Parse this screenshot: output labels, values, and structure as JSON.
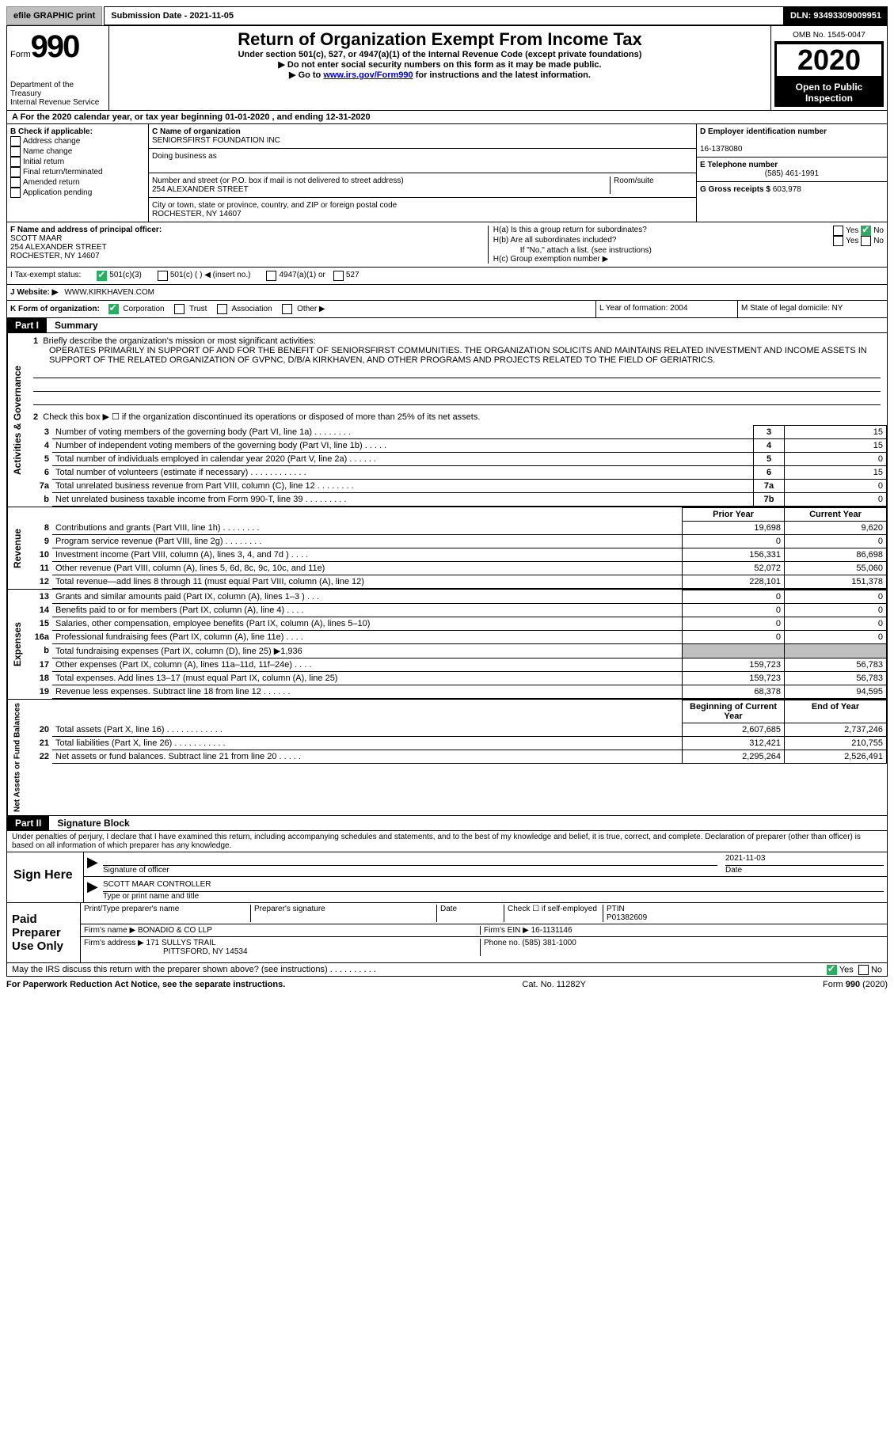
{
  "topbar": {
    "efile": "efile GRAPHIC print",
    "submission": "Submission Date - 2021-11-05",
    "dln": "DLN: 93493309009951"
  },
  "header": {
    "form_word": "Form",
    "form_num": "990",
    "dept": "Department of the Treasury\nInternal Revenue Service",
    "title": "Return of Organization Exempt From Income Tax",
    "subtitle": "Under section 501(c), 527, or 4947(a)(1) of the Internal Revenue Code (except private foundations)",
    "warn1": "▶ Do not enter social security numbers on this form as it may be made public.",
    "warn2_prefix": "▶ Go to ",
    "warn2_link": "www.irs.gov/Form990",
    "warn2_suffix": " for instructions and the latest information.",
    "omb": "OMB No. 1545-0047",
    "year": "2020",
    "open": "Open to Public Inspection"
  },
  "a_line": "A For the 2020 calendar year, or tax year beginning 01-01-2020   , and ending 12-31-2020",
  "b": {
    "label": "B Check if applicable:",
    "items": [
      "Address change",
      "Name change",
      "Initial return",
      "Final return/terminated",
      "Amended return",
      "Application pending"
    ]
  },
  "c": {
    "name_label": "C Name of organization",
    "name": "SENIORSFIRST FOUNDATION INC",
    "dba_label": "Doing business as",
    "addr_label": "Number and street (or P.O. box if mail is not delivered to street address)",
    "addr": "254 ALEXANDER STREET",
    "room_label": "Room/suite",
    "city_label": "City or town, state or province, country, and ZIP or foreign postal code",
    "city": "ROCHESTER, NY  14607"
  },
  "d": {
    "label": "D Employer identification number",
    "val": "16-1378080"
  },
  "e": {
    "label": "E Telephone number",
    "val": "(585) 461-1991"
  },
  "g": {
    "label": "G Gross receipts $",
    "val": "603,978"
  },
  "f": {
    "label": "F  Name and address of principal officer:",
    "name": "SCOTT MAAR",
    "addr1": "254 ALEXANDER STREET",
    "addr2": "ROCHESTER, NY  14607"
  },
  "h": {
    "ha": "H(a)  Is this a group return for subordinates?",
    "hb": "H(b)  Are all subordinates included?",
    "hb_note": "If \"No,\" attach a list. (see instructions)",
    "hc": "H(c)  Group exemption number ▶"
  },
  "i": {
    "label": "I   Tax-exempt status:",
    "o1": "501(c)(3)",
    "o2": "501(c) (  ) ◀ (insert no.)",
    "o3": "4947(a)(1) or",
    "o4": "527"
  },
  "j": {
    "label": "J   Website: ▶",
    "val": "WWW.KIRKHAVEN.COM"
  },
  "k": {
    "label": "K Form of organization:",
    "o1": "Corporation",
    "o2": "Trust",
    "o3": "Association",
    "o4": "Other ▶"
  },
  "l": {
    "label": "L Year of formation: 2004"
  },
  "m": {
    "label": "M State of legal domicile: NY"
  },
  "part1": {
    "label": "Part I",
    "title": "Summary"
  },
  "summary": {
    "line1_label": "Briefly describe the organization's mission or most significant activities:",
    "line1_text": "OPERATES PRIMARILY IN SUPPORT OF AND FOR THE BENEFIT OF SENIORSFIRST COMMUNITIES. THE ORGANIZATION SOLICITS AND MAINTAINS RELATED INVESTMENT AND INCOME ASSETS IN SUPPORT OF THE RELATED ORGANIZATION OF GVPNC, D/B/A KIRKHAVEN, AND OTHER PROGRAMS AND PROJECTS RELATED TO THE FIELD OF GERIATRICS.",
    "line2": "Check this box ▶ ☐  if the organization discontinued its operations or disposed of more than 25% of its net assets.",
    "rows_ag": [
      {
        "n": "3",
        "t": "Number of voting members of the governing body (Part VI, line 1a)   .     .     .     .     .     .     .     .",
        "b": "3",
        "v": "15"
      },
      {
        "n": "4",
        "t": "Number of independent voting members of the governing body (Part VI, line 1b)   .     .     .     .     .",
        "b": "4",
        "v": "15"
      },
      {
        "n": "5",
        "t": "Total number of individuals employed in calendar year 2020 (Part V, line 2a)   .     .     .     .     .     .",
        "b": "5",
        "v": "0"
      },
      {
        "n": "6",
        "t": "Total number of volunteers (estimate if necessary)   .     .     .     .     .     .     .     .     .     .     .     .",
        "b": "6",
        "v": "15"
      },
      {
        "n": "7a",
        "t": "Total unrelated business revenue from Part VIII, column (C), line 12   .     .     .     .     .     .     .     .",
        "b": "7a",
        "v": "0"
      },
      {
        "n": "b",
        "t": "Net unrelated business taxable income from Form 990-T, line 39   .     .     .     .     .     .     .     .     .",
        "b": "7b",
        "v": "0"
      }
    ],
    "revenue_header": {
      "prior": "Prior Year",
      "current": "Current Year"
    },
    "revenue": [
      {
        "n": "8",
        "t": "Contributions and grants (Part VIII, line 1h)   .     .     .     .     .     .     .     .",
        "p": "19,698",
        "c": "9,620"
      },
      {
        "n": "9",
        "t": "Program service revenue (Part VIII, line 2g)   .     .     .     .     .     .     .     .",
        "p": "0",
        "c": "0"
      },
      {
        "n": "10",
        "t": "Investment income (Part VIII, column (A), lines 3, 4, and 7d )   .     .     .     .",
        "p": "156,331",
        "c": "86,698"
      },
      {
        "n": "11",
        "t": "Other revenue (Part VIII, column (A), lines 5, 6d, 8c, 9c, 10c, and 11e)",
        "p": "52,072",
        "c": "55,060"
      },
      {
        "n": "12",
        "t": "Total revenue—add lines 8 through 11 (must equal Part VIII, column (A), line 12)",
        "p": "228,101",
        "c": "151,378"
      }
    ],
    "expenses": [
      {
        "n": "13",
        "t": "Grants and similar amounts paid (Part IX, column (A), lines 1–3 )   .     .     .",
        "p": "0",
        "c": "0"
      },
      {
        "n": "14",
        "t": "Benefits paid to or for members (Part IX, column (A), line 4)   .     .     .     .",
        "p": "0",
        "c": "0"
      },
      {
        "n": "15",
        "t": "Salaries, other compensation, employee benefits (Part IX, column (A), lines 5–10)",
        "p": "0",
        "c": "0"
      },
      {
        "n": "16a",
        "t": "Professional fundraising fees (Part IX, column (A), line 11e)   .     .     .     .",
        "p": "0",
        "c": "0"
      },
      {
        "n": "b",
        "t": "Total fundraising expenses (Part IX, column (D), line 25) ▶1,936",
        "p": "",
        "c": "",
        "shade": true
      },
      {
        "n": "17",
        "t": "Other expenses (Part IX, column (A), lines 11a–11d, 11f–24e)   .     .     .     .",
        "p": "159,723",
        "c": "56,783"
      },
      {
        "n": "18",
        "t": "Total expenses. Add lines 13–17 (must equal Part IX, column (A), line 25)",
        "p": "159,723",
        "c": "56,783"
      },
      {
        "n": "19",
        "t": "Revenue less expenses. Subtract line 18 from line 12   .     .     .     .     .     .",
        "p": "68,378",
        "c": "94,595"
      }
    ],
    "netassets_header": {
      "beg": "Beginning of Current Year",
      "end": "End of Year"
    },
    "netassets": [
      {
        "n": "20",
        "t": "Total assets (Part X, line 16)   .     .     .     .     .     .     .     .     .     .     .     .",
        "p": "2,607,685",
        "c": "2,737,246"
      },
      {
        "n": "21",
        "t": "Total liabilities (Part X, line 26)   .     .     .     .     .     .     .     .     .     .     .",
        "p": "312,421",
        "c": "210,755"
      },
      {
        "n": "22",
        "t": "Net assets or fund balances. Subtract line 21 from line 20   .     .     .     .     .",
        "p": "2,295,264",
        "c": "2,526,491"
      }
    ]
  },
  "part2": {
    "label": "Part II",
    "title": "Signature Block"
  },
  "sig": {
    "perjury": "Under penalties of perjury, I declare that I have examined this return, including accompanying schedules and statements, and to the best of my knowledge and belief, it is true, correct, and complete. Declaration of preparer (other than officer) is based on all information of which preparer has any knowledge.",
    "sign_here": "Sign Here",
    "sig_officer": "Signature of officer",
    "sig_date": "2021-11-03",
    "date_label": "Date",
    "officer_name": "SCOTT MAAR CONTROLLER",
    "name_label": "Type or print name and title",
    "paid": "Paid Preparer Use Only",
    "prep_name_label": "Print/Type preparer's name",
    "prep_sig_label": "Preparer's signature",
    "prep_date": "Date",
    "check_self": "Check ☐ if self-employed",
    "ptin_label": "PTIN",
    "ptin": "P01382609",
    "firm_name_label": "Firm's name    ▶",
    "firm_name": "BONADIO & CO LLP",
    "firm_ein_label": "Firm's EIN ▶",
    "firm_ein": "16-1131146",
    "firm_addr_label": "Firm's address ▶",
    "firm_addr1": "171 SULLYS TRAIL",
    "firm_addr2": "PITTSFORD, NY  14534",
    "phone_label": "Phone no.",
    "phone": "(585) 381-1000"
  },
  "discuss": "May the IRS discuss this return with the preparer shown above? (see instructions)   .     .     .     .     .     .     .     .     .     .",
  "footer": {
    "paperwork": "For Paperwork Reduction Act Notice, see the separate instructions.",
    "cat": "Cat. No. 11282Y",
    "form": "Form 990 (2020)"
  },
  "labels": {
    "yes": "Yes",
    "no": "No",
    "ag": "Activities & Governance",
    "rev": "Revenue",
    "exp": "Expenses",
    "na": "Net Assets or Fund Balances"
  }
}
